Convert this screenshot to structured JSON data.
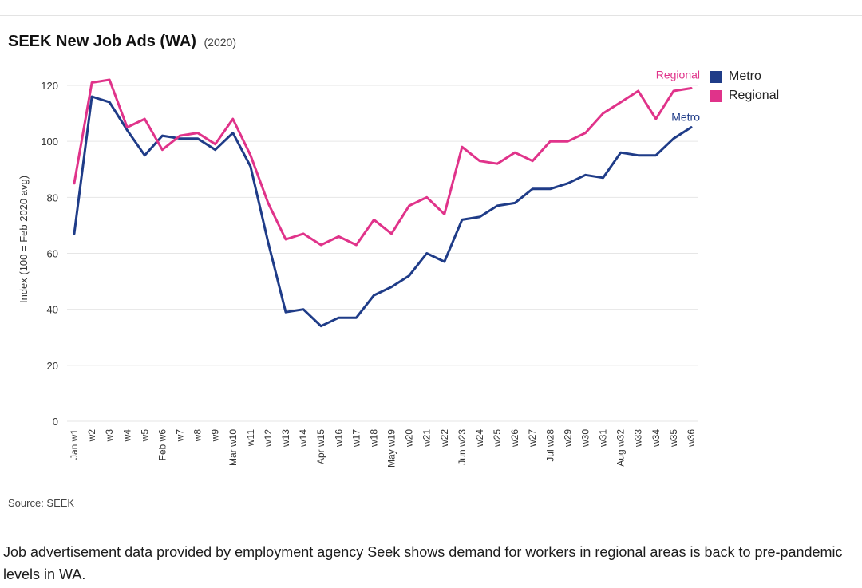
{
  "header": {
    "title": "SEEK New Job Ads (WA)",
    "subtitle": "(2020)"
  },
  "source": "Source: SEEK",
  "caption": "Job advertisement data provided by employment agency Seek shows demand for workers in regional areas is back to pre-pandemic levels in WA.",
  "colors": {
    "metro": "#1f3c88",
    "regional": "#e0338a",
    "grid": "#e6e6e6",
    "axis_text": "#333333"
  },
  "chart_data": {
    "type": "line",
    "title": "SEEK New Job Ads (WA)",
    "subtitle": "(2020)",
    "xlabel": "",
    "ylabel": "Index (100 = Feb 2020 avg)",
    "ylim": [
      0,
      120
    ],
    "yticks": [
      0,
      20,
      40,
      60,
      80,
      100,
      120
    ],
    "grid": true,
    "legend_position": "top-right",
    "categories": [
      "Jan w1",
      "w2",
      "w3",
      "w4",
      "w5",
      "Feb w6",
      "w7",
      "w8",
      "w9",
      "Mar w10",
      "w11",
      "w12",
      "w13",
      "w14",
      "Apr w15",
      "w16",
      "w17",
      "w18",
      "May w19",
      "w20",
      "w21",
      "w22",
      "Jun w23",
      "w24",
      "w25",
      "w26",
      "w27",
      "Jul w28",
      "w29",
      "w30",
      "w31",
      "Aug w32",
      "w33",
      "w34",
      "w35",
      "w36"
    ],
    "series": [
      {
        "name": "Metro",
        "color": "#1f3c88",
        "end_label": "Metro",
        "values": [
          67,
          116,
          114,
          104,
          95,
          102,
          101,
          101,
          97,
          103,
          91,
          64,
          39,
          40,
          34,
          37,
          37,
          45,
          48,
          52,
          60,
          57,
          72,
          73,
          77,
          78,
          83,
          83,
          85,
          88,
          87,
          96,
          95,
          95,
          101,
          105
        ]
      },
      {
        "name": "Regional",
        "color": "#e0338a",
        "end_label": "Regional",
        "values": [
          85,
          121,
          122,
          105,
          108,
          97,
          102,
          103,
          99,
          108,
          95,
          78,
          65,
          67,
          63,
          66,
          63,
          72,
          67,
          77,
          80,
          74,
          98,
          93,
          92,
          96,
          93,
          100,
          100,
          103,
          110,
          114,
          118,
          108,
          118,
          119
        ]
      }
    ]
  }
}
